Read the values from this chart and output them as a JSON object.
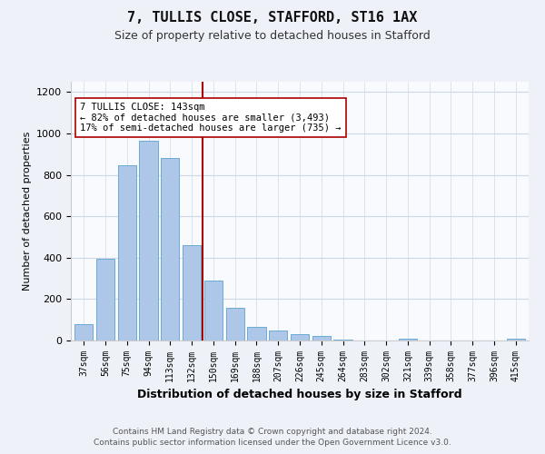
{
  "title1": "7, TULLIS CLOSE, STAFFORD, ST16 1AX",
  "title2": "Size of property relative to detached houses in Stafford",
  "xlabel": "Distribution of detached houses by size in Stafford",
  "ylabel": "Number of detached properties",
  "categories": [
    "37sqm",
    "56sqm",
    "75sqm",
    "94sqm",
    "113sqm",
    "132sqm",
    "150sqm",
    "169sqm",
    "188sqm",
    "207sqm",
    "226sqm",
    "245sqm",
    "264sqm",
    "283sqm",
    "302sqm",
    "321sqm",
    "339sqm",
    "358sqm",
    "377sqm",
    "396sqm",
    "415sqm"
  ],
  "values": [
    80,
    395,
    845,
    965,
    880,
    460,
    290,
    160,
    65,
    50,
    30,
    20,
    5,
    0,
    0,
    8,
    0,
    0,
    0,
    0,
    8
  ],
  "bar_color": "#aec6e8",
  "bar_edge_color": "#6aabd4",
  "vline_x_index": 6,
  "vline_color": "#aa0000",
  "annotation_text": "7 TULLIS CLOSE: 143sqm\n← 82% of detached houses are smaller (3,493)\n17% of semi-detached houses are larger (735) →",
  "annotation_box_color": "#ffffff",
  "annotation_box_edge_color": "#aa0000",
  "ylim": [
    0,
    1250
  ],
  "yticks": [
    0,
    200,
    400,
    600,
    800,
    1000,
    1200
  ],
  "footer1": "Contains HM Land Registry data © Crown copyright and database right 2024.",
  "footer2": "Contains public sector information licensed under the Open Government Licence v3.0.",
  "bg_color": "#eef2f8",
  "plot_bg_color": "#f8fafd",
  "grid_color": "#d0d8e8"
}
